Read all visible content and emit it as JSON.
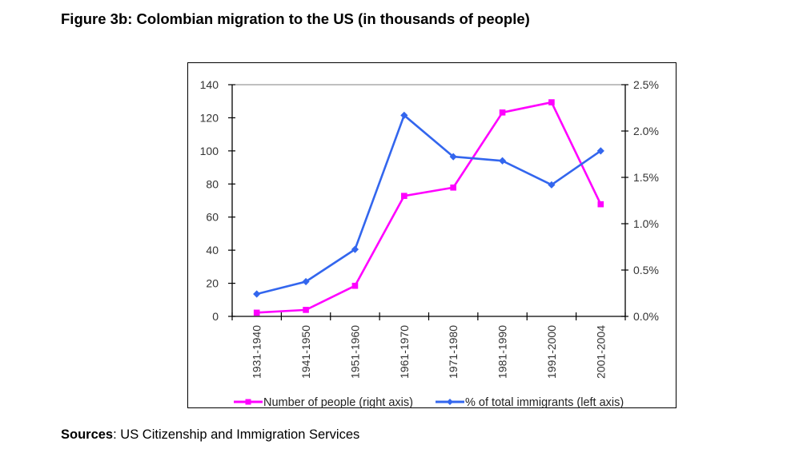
{
  "figure": {
    "title": "Figure 3b: Colombian migration to the US (in thousands of people)",
    "source_label": "Sources",
    "source_text": ": US Citizenship and Immigration Services"
  },
  "colors": {
    "magenta_series": "#ff00ff",
    "blue_series": "#3366ee",
    "axis": "#000000",
    "tick_text": "#333333"
  },
  "chart_data": {
    "type": "line",
    "title": "Figure 3b: Colombian migration to the US (in thousands of people)",
    "xlabel": "",
    "ylabel_left": "",
    "ylabel_right": "",
    "categories": [
      "1931-1940",
      "1941-1950",
      "1951-1960",
      "1961-1970",
      "1971-1980",
      "1981-1990",
      "1991-2000",
      "2001-2004"
    ],
    "left_axis": {
      "ylim": [
        0,
        140
      ],
      "ticks": [
        0,
        20,
        40,
        60,
        80,
        100,
        120,
        140
      ],
      "tick_labels": [
        "0",
        "20",
        "40",
        "60",
        "80",
        "100",
        "120",
        "140"
      ]
    },
    "right_axis": {
      "ylim": [
        0,
        2.5
      ],
      "ticks": [
        0,
        0.5,
        1.0,
        1.5,
        2.0,
        2.5
      ],
      "tick_labels": [
        "0.0%",
        "0.5%",
        "1.0%",
        "1.5%",
        "2.0%",
        "2.5%"
      ]
    },
    "series": [
      {
        "name": "Number of people (right axis)",
        "axis": "right",
        "marker": "square",
        "color": "#ff00ff",
        "values_right_axis_percent": [
          0.04,
          0.07,
          0.33,
          1.3,
          1.39,
          2.2,
          2.31,
          1.21
        ],
        "values_left_axis_scale": [
          2,
          4,
          18.5,
          73,
          78,
          123.5,
          129.5,
          68
        ]
      },
      {
        "name": "% of total immigrants (left axis)",
        "axis": "left",
        "marker": "diamond",
        "color": "#3366ee",
        "values": [
          13.5,
          21,
          40.5,
          121.5,
          96.5,
          94,
          79.5,
          100
        ]
      }
    ],
    "grid": false,
    "legend_position": "bottom"
  }
}
